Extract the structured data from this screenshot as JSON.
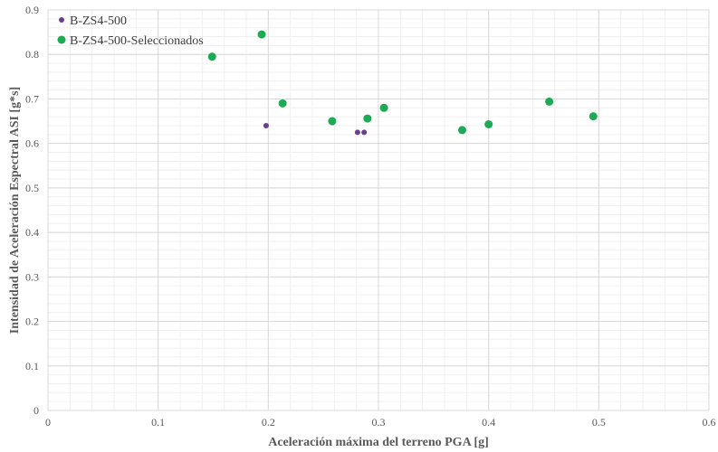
{
  "chart_data": {
    "type": "scatter",
    "title": "",
    "xlabel": "Aceleración máxima del terreno PGA [g]",
    "ylabel": "Intensidad de Aceleración Espectral ASI [g*s]",
    "xlim": [
      0,
      0.6
    ],
    "ylim": [
      0,
      0.9
    ],
    "xticks": [
      "0",
      "0.1",
      "0.2",
      "0.3",
      "0.4",
      "0.5",
      "0.6"
    ],
    "yticks": [
      "0",
      "0.1",
      "0.2",
      "0.3",
      "0.4",
      "0.5",
      "0.6",
      "0.7",
      "0.8",
      "0.9"
    ],
    "grid": true,
    "legend_position": "top-left",
    "series": [
      {
        "name": "B-ZS4-500",
        "color": "#6B3F8C",
        "points": [
          {
            "x": 0.198,
            "y": 0.64
          },
          {
            "x": 0.281,
            "y": 0.625
          },
          {
            "x": 0.287,
            "y": 0.625
          }
        ]
      },
      {
        "name": "B-ZS4-500-Seleccionados",
        "color": "#1DAA55",
        "points": [
          {
            "x": 0.149,
            "y": 0.795
          },
          {
            "x": 0.194,
            "y": 0.845
          },
          {
            "x": 0.213,
            "y": 0.69
          },
          {
            "x": 0.258,
            "y": 0.65
          },
          {
            "x": 0.29,
            "y": 0.656
          },
          {
            "x": 0.305,
            "y": 0.68
          },
          {
            "x": 0.376,
            "y": 0.63
          },
          {
            "x": 0.4,
            "y": 0.643
          },
          {
            "x": 0.455,
            "y": 0.694
          },
          {
            "x": 0.495,
            "y": 0.661
          }
        ]
      }
    ]
  }
}
